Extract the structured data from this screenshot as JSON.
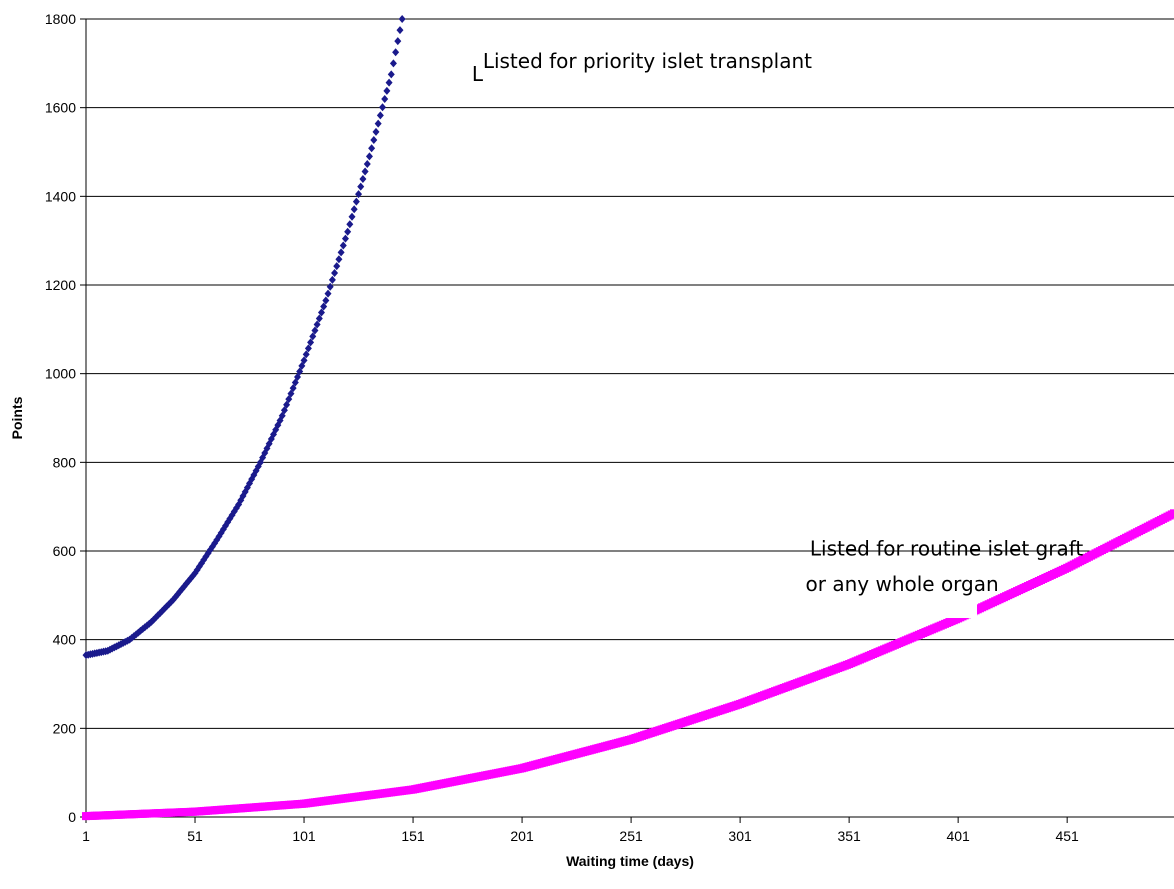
{
  "chart_data": {
    "type": "scatter",
    "title": "",
    "xlabel": "Waiting time (days)",
    "ylabel": "Points",
    "xlim": [
      1,
      500
    ],
    "ylim": [
      0,
      1800
    ],
    "x_ticks": [
      1,
      51,
      101,
      151,
      201,
      251,
      301,
      351,
      401,
      451
    ],
    "y_ticks": [
      0,
      200,
      400,
      600,
      800,
      1000,
      1200,
      1400,
      1600,
      1800
    ],
    "grid": "horizontal",
    "legend": "none",
    "series": [
      {
        "color": "#1a1a8c",
        "marker": "diamond",
        "x": [
          1,
          11,
          21,
          31,
          41,
          51,
          61,
          71,
          81,
          91,
          101,
          111,
          121,
          131,
          141,
          146
        ],
        "y": [
          365,
          375,
          400,
          440,
          490,
          550,
          625,
          705,
          800,
          905,
          1030,
          1165,
          1320,
          1490,
          1675,
          1800
        ]
      },
      {
        "color": "#ff00ff",
        "marker": "square",
        "x": [
          1,
          51,
          101,
          151,
          201,
          251,
          301,
          351,
          401,
          451,
          500
        ],
        "y": [
          2,
          12,
          30,
          62,
          110,
          175,
          255,
          345,
          448,
          562,
          685
        ]
      }
    ],
    "annotations": [
      {
        "text": "Listed for priority islet transplant",
        "x": 183,
        "y": 1690
      },
      {
        "text": "L",
        "x": 178,
        "y": 1660
      },
      {
        "text": "Listed for routine islet graft",
        "x": 333,
        "y": 590
      },
      {
        "text": "or any whole organ",
        "x": 331,
        "y": 510
      }
    ]
  }
}
